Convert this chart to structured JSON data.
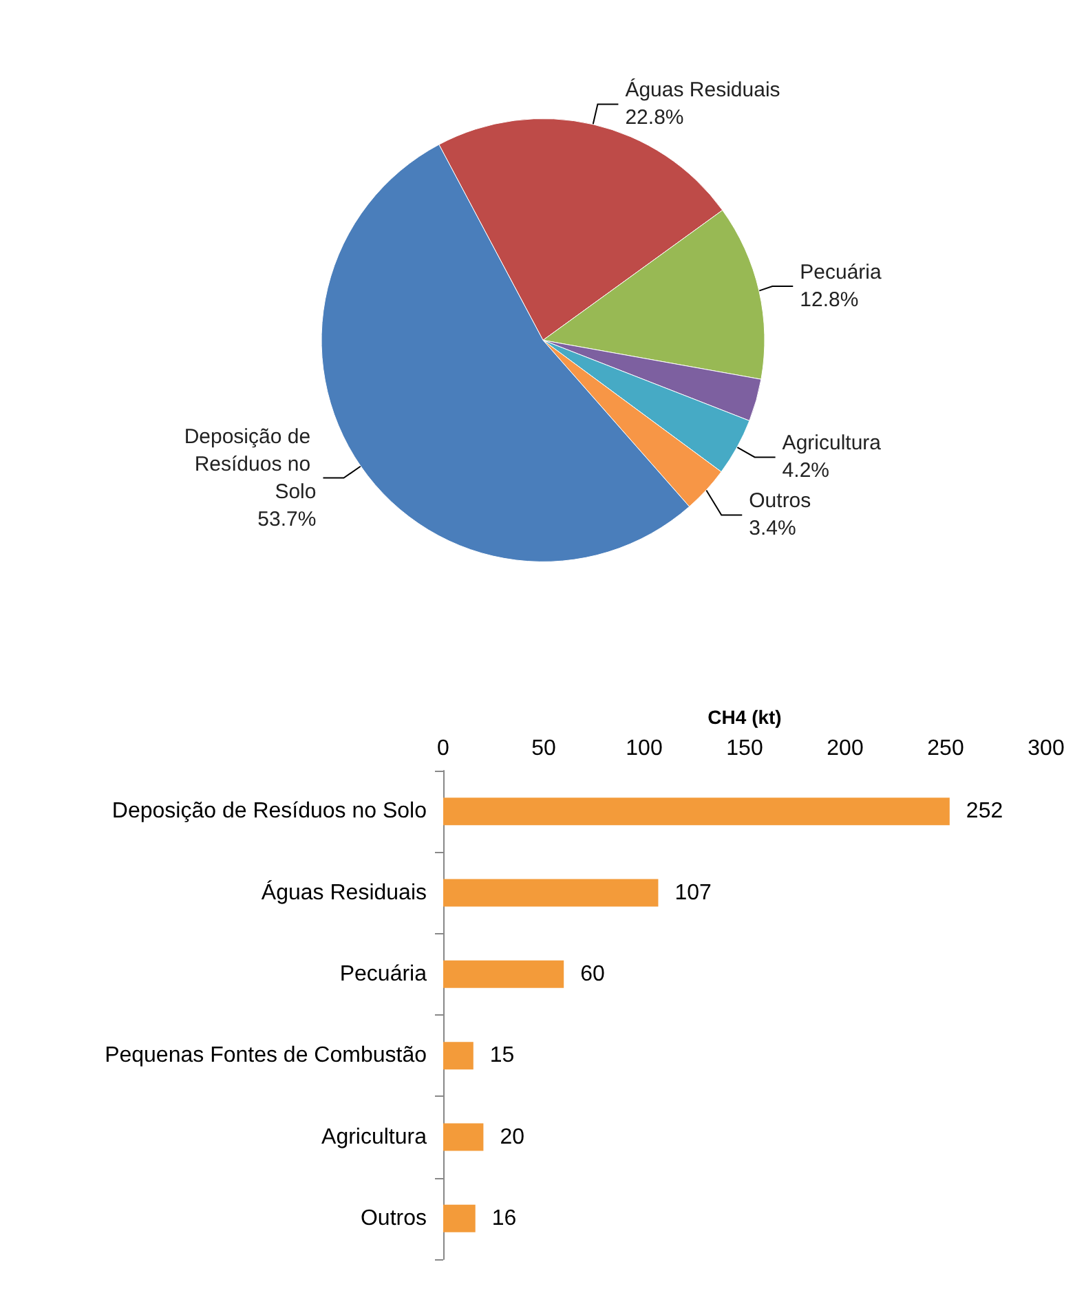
{
  "chart_data": [
    {
      "type": "pie",
      "categories": [
        "Águas Residuais",
        "Pecuária",
        null,
        "Agricultura",
        "Outros",
        "Deposição de Resíduos no Solo"
      ],
      "values": [
        22.8,
        12.8,
        3.1,
        4.2,
        3.4,
        53.7
      ],
      "value_labels": [
        "22.8%",
        "12.8%",
        null,
        "4.2%",
        "3.4%",
        "53.7%"
      ],
      "colors": [
        "#be4b48",
        "#98b954",
        "#7d60a0",
        "#46aac5",
        "#f79646",
        "#4a7ebb"
      ]
    },
    {
      "type": "bar",
      "orientation": "horizontal",
      "xlabel": "CH4 (kt)",
      "categories": [
        "Deposição de Resíduos no Solo",
        "Águas Residuais",
        "Pecuária",
        "Pequenas Fontes de Combustão",
        "Agricultura",
        "Outros"
      ],
      "values": [
        252,
        107,
        60,
        15,
        20,
        16
      ],
      "color": "#f39b3a",
      "data_labels": true,
      "xlim": [
        0,
        300
      ],
      "xticks": [
        0,
        50,
        100,
        150,
        200,
        250,
        300
      ]
    }
  ]
}
